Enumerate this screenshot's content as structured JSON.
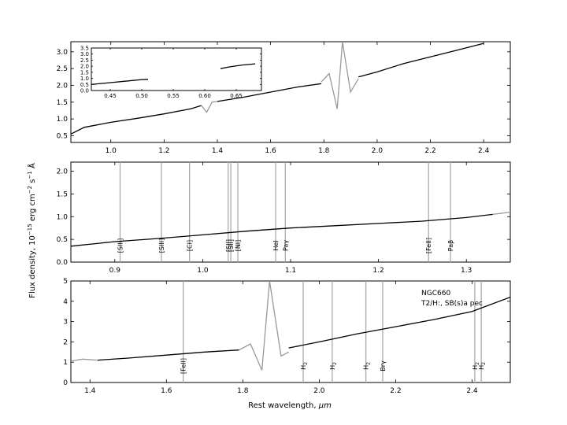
{
  "figure": {
    "ylabel": "Flux density, 10^-15 erg cm^-2 s^-1 Å^-1",
    "xlabel": "Rest wavelength, μm",
    "ylabel_parts": {
      "pre": "Flux density, 10",
      "exp1": "−15",
      "mid1": " erg  cm",
      "exp2": "−2",
      "mid2": "  s",
      "exp3": "−1",
      "post": "  Å"
    },
    "xlabel_parts": {
      "pre": "Rest wavelength, ",
      "unit": "μm"
    }
  },
  "chart_data": [
    {
      "type": "line",
      "panel": "top",
      "xlim": [
        0.85,
        2.5
      ],
      "ylim": [
        0.3,
        3.3
      ],
      "xticks": [
        "1.0",
        "1.2",
        "1.4",
        "1.6",
        "1.8",
        "2.0",
        "2.2",
        "2.4"
      ],
      "xtick_values": [
        1.0,
        1.2,
        1.4,
        1.6,
        1.8,
        2.0,
        2.2,
        2.4
      ],
      "yticks": [
        "0.5",
        "1.0",
        "1.5",
        "2.0",
        "2.5",
        "3.0"
      ],
      "ytick_values": [
        0.5,
        1.0,
        1.5,
        2.0,
        2.5,
        3.0
      ],
      "series": [
        {
          "color": "#000000",
          "x": [
            0.85,
            0.9,
            1.0,
            1.1,
            1.2,
            1.3,
            1.34
          ],
          "y": [
            0.55,
            0.75,
            0.9,
            1.02,
            1.15,
            1.3,
            1.4
          ]
        },
        {
          "color": "#999999",
          "x": [
            1.34,
            1.36,
            1.38,
            1.4
          ],
          "y": [
            1.4,
            1.2,
            1.5,
            1.52
          ]
        },
        {
          "color": "#000000",
          "x": [
            1.4,
            1.5,
            1.6,
            1.7,
            1.79
          ],
          "y": [
            1.52,
            1.65,
            1.8,
            1.95,
            2.05
          ]
        },
        {
          "color": "#999999",
          "x": [
            1.79,
            1.82,
            1.85,
            1.87,
            1.9,
            1.93
          ],
          "y": [
            2.1,
            2.35,
            1.3,
            3.3,
            1.8,
            2.2
          ]
        },
        {
          "color": "#000000",
          "x": [
            1.93,
            2.0,
            2.1,
            2.2,
            2.3,
            2.4
          ],
          "y": [
            2.25,
            2.4,
            2.65,
            2.85,
            3.05,
            3.25
          ]
        }
      ],
      "inset": {
        "xlim": [
          0.42,
          0.69
        ],
        "ylim": [
          0.0,
          3.5
        ],
        "xticks": [
          "0.45",
          "0.50",
          "0.55",
          "0.60",
          "0.65"
        ],
        "xtick_values": [
          0.45,
          0.5,
          0.55,
          0.6,
          0.65
        ],
        "yticks": [
          "0.0",
          "0.5",
          "1.0",
          "1.5",
          "2.0",
          "2.5",
          "3.0",
          "3.5"
        ],
        "ytick_values": [
          0.0,
          0.5,
          1.0,
          1.5,
          2.0,
          2.5,
          3.0,
          3.5
        ],
        "series": [
          {
            "color": "#000000",
            "x": [
              0.42,
              0.45,
              0.48,
              0.5,
              0.51
            ],
            "y": [
              0.5,
              0.65,
              0.8,
              0.9,
              0.92
            ]
          },
          {
            "color": "#000000",
            "x": [
              0.625,
              0.64,
              0.66,
              0.68
            ],
            "y": [
              1.8,
              1.95,
              2.1,
              2.2
            ]
          }
        ]
      }
    },
    {
      "type": "line",
      "panel": "middle",
      "xlim": [
        0.85,
        1.35
      ],
      "ylim": [
        0.0,
        2.2
      ],
      "xticks": [
        "0.9",
        "1.0",
        "1.1",
        "1.2",
        "1.3"
      ],
      "xtick_values": [
        0.9,
        1.0,
        1.1,
        1.2,
        1.3
      ],
      "yticks": [
        "0.0",
        "0.5",
        "1.0",
        "1.5",
        "2.0"
      ],
      "ytick_values": [
        0.0,
        0.5,
        1.0,
        1.5,
        2.0
      ],
      "series": [
        {
          "color": "#000000",
          "x": [
            0.85,
            0.9,
            0.95,
            1.0,
            1.05,
            1.1,
            1.15,
            1.2,
            1.25,
            1.3,
            1.33
          ],
          "y": [
            0.35,
            0.45,
            0.52,
            0.6,
            0.68,
            0.75,
            0.8,
            0.85,
            0.9,
            0.98,
            1.05
          ]
        },
        {
          "color": "#999999",
          "x": [
            1.33,
            1.35
          ],
          "y": [
            1.05,
            1.1
          ]
        }
      ],
      "lines": [
        {
          "x": 0.906,
          "label": "[SIII]"
        },
        {
          "x": 0.953,
          "label": "[SIII]"
        },
        {
          "x": 0.985,
          "label": "[CI]"
        },
        {
          "x": 1.029,
          "label": "[SII]"
        },
        {
          "x": 1.032,
          "label": "[SII]"
        },
        {
          "x": 1.04,
          "label": "[NI]"
        },
        {
          "x": 1.083,
          "label": "HeI"
        },
        {
          "x": 1.094,
          "label": "Paγ"
        },
        {
          "x": 1.257,
          "label": "[FeII]"
        },
        {
          "x": 1.282,
          "label": "Paβ"
        }
      ]
    },
    {
      "type": "line",
      "panel": "bottom",
      "xlim": [
        1.35,
        2.5
      ],
      "ylim": [
        0,
        5
      ],
      "xticks": [
        "1.4",
        "1.6",
        "1.8",
        "2.0",
        "2.2",
        "2.4"
      ],
      "xtick_values": [
        1.4,
        1.6,
        1.8,
        2.0,
        2.2,
        2.4
      ],
      "yticks": [
        "0",
        "1",
        "2",
        "3",
        "4",
        "5"
      ],
      "ytick_values": [
        0,
        1,
        2,
        3,
        4,
        5
      ],
      "annotation": [
        "NGC660",
        "T2/H:,  SB(s)a pec"
      ],
      "series": [
        {
          "color": "#999999",
          "x": [
            1.35,
            1.38,
            1.42
          ],
          "y": [
            1.05,
            1.15,
            1.1
          ]
        },
        {
          "color": "#000000",
          "x": [
            1.42,
            1.5,
            1.6,
            1.7,
            1.79
          ],
          "y": [
            1.1,
            1.2,
            1.35,
            1.5,
            1.6
          ]
        },
        {
          "color": "#999999",
          "x": [
            1.79,
            1.82,
            1.85,
            1.87,
            1.9,
            1.92
          ],
          "y": [
            1.6,
            1.9,
            0.6,
            5.0,
            1.3,
            1.5
          ]
        },
        {
          "color": "#000000",
          "x": [
            1.92,
            2.0,
            2.1,
            2.2,
            2.3,
            2.4,
            2.5
          ],
          "y": [
            1.7,
            2.0,
            2.4,
            2.75,
            3.1,
            3.5,
            4.2
          ]
        }
      ],
      "lines": [
        {
          "x": 1.644,
          "label": "[FeII]"
        },
        {
          "x": 1.958,
          "label": "H2"
        },
        {
          "x": 2.034,
          "label": "H2"
        },
        {
          "x": 2.122,
          "label": "H2"
        },
        {
          "x": 2.166,
          "label": "Brγ"
        },
        {
          "x": 2.407,
          "label": "H2"
        },
        {
          "x": 2.424,
          "label": "H2"
        }
      ]
    }
  ]
}
